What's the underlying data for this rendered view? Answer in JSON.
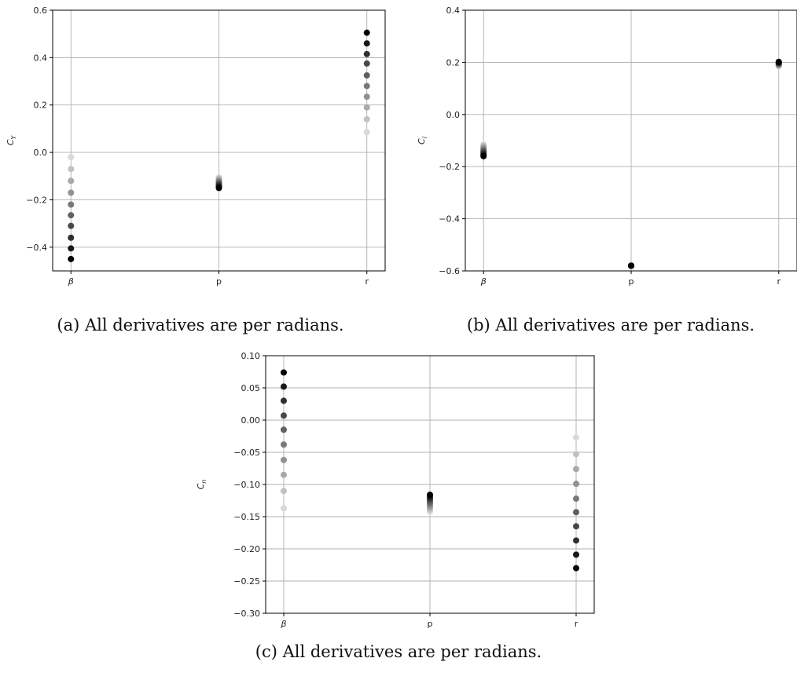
{
  "chart_data": [
    {
      "type": "scatter",
      "id": "a",
      "categories": [
        "β",
        "p",
        "r"
      ],
      "ylabel": "C_Y",
      "ylim": [
        -0.5,
        0.6
      ],
      "yticks": [
        "0.6",
        "0.4",
        "0.2",
        "0.0",
        "−0.2",
        "−0.4"
      ],
      "ytick_values": [
        0.6,
        0.4,
        0.2,
        0.0,
        -0.2,
        -0.4
      ],
      "grid": true,
      "series": [
        {
          "category": "β",
          "values": [
            -0.02,
            -0.07,
            -0.12,
            -0.17,
            -0.22,
            -0.265,
            -0.31,
            -0.36,
            -0.405,
            -0.45
          ]
        },
        {
          "category": "p",
          "values": [
            -0.105,
            -0.11,
            -0.115,
            -0.12,
            -0.125,
            -0.13,
            -0.135,
            -0.14,
            -0.145,
            -0.15
          ]
        },
        {
          "category": "r",
          "values": [
            0.085,
            0.14,
            0.19,
            0.235,
            0.28,
            0.325,
            0.375,
            0.415,
            0.46,
            0.505
          ]
        }
      ],
      "caption": "(a) All derivatives are per radians."
    },
    {
      "type": "scatter",
      "id": "b",
      "categories": [
        "β",
        "p",
        "r"
      ],
      "ylabel": "C_l",
      "ylim": [
        -0.6,
        0.4
      ],
      "yticks": [
        "0.4",
        "0.2",
        "0.0",
        "−0.2",
        "−0.4",
        "−0.6"
      ],
      "ytick_values": [
        0.4,
        0.2,
        0.0,
        -0.2,
        -0.4,
        -0.6
      ],
      "grid": true,
      "series": [
        {
          "category": "β",
          "values": [
            -0.115,
            -0.12,
            -0.125,
            -0.13,
            -0.135,
            -0.14,
            -0.145,
            -0.15,
            -0.155,
            -0.16
          ]
        },
        {
          "category": "p",
          "values": [
            -0.58,
            -0.58,
            -0.58,
            -0.58,
            -0.58,
            -0.58,
            -0.58,
            -0.58,
            -0.58,
            -0.58
          ]
        },
        {
          "category": "r",
          "values": [
            0.185,
            0.187,
            0.189,
            0.191,
            0.193,
            0.195,
            0.197,
            0.199,
            0.2,
            0.202
          ]
        }
      ],
      "caption": "(b) All derivatives are per radians."
    },
    {
      "type": "scatter",
      "id": "c",
      "categories": [
        "β",
        "p",
        "r"
      ],
      "ylabel": "C_n",
      "ylim": [
        -0.3,
        0.1
      ],
      "yticks": [
        "0.10",
        "0.05",
        "0.00",
        "−0.05",
        "−0.10",
        "−0.15",
        "−0.20",
        "−0.25",
        "−0.30"
      ],
      "ytick_values": [
        0.1,
        0.05,
        0.0,
        -0.05,
        -0.1,
        -0.15,
        -0.2,
        -0.25,
        -0.3
      ],
      "grid": true,
      "series": [
        {
          "category": "β",
          "values": [
            -0.137,
            -0.11,
            -0.085,
            -0.062,
            -0.038,
            -0.015,
            0.007,
            0.03,
            0.052,
            0.074
          ]
        },
        {
          "category": "p",
          "values": [
            -0.142,
            -0.139,
            -0.136,
            -0.133,
            -0.13,
            -0.127,
            -0.124,
            -0.121,
            -0.118,
            -0.116
          ]
        },
        {
          "category": "r",
          "values": [
            -0.027,
            -0.053,
            -0.076,
            -0.099,
            -0.122,
            -0.143,
            -0.165,
            -0.187,
            -0.209,
            -0.23
          ]
        }
      ],
      "caption": "(c) All derivatives are per radians."
    }
  ],
  "colors": {
    "grid": "#b0b0b0",
    "axis": "#000000",
    "point_dark": "#000000",
    "point_light": "#d9d9d9"
  }
}
